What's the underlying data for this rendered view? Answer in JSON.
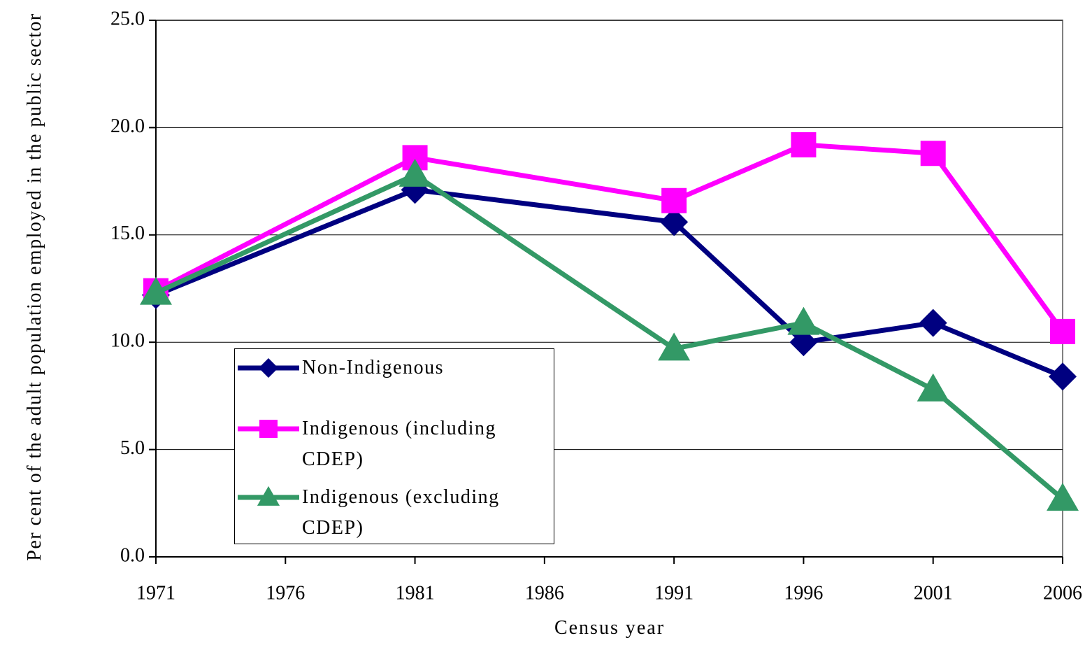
{
  "chart_data": {
    "type": "line",
    "x_label": "Census year",
    "y_label": "Per cent of the adult population employed in the public sector",
    "x": [
      1971,
      1981,
      1991,
      1996,
      2001,
      2006
    ],
    "series": [
      {
        "name": "Non-Indigenous",
        "color": "#000080",
        "marker": "diamond",
        "values": [
          12.2,
          17.1,
          15.6,
          10.0,
          10.9,
          8.4
        ]
      },
      {
        "name": "Indigenous (including CDEP)",
        "color": "#ff00ff",
        "marker": "square",
        "values": [
          12.4,
          18.6,
          16.6,
          19.2,
          18.8,
          10.5
        ]
      },
      {
        "name": "Indigenous (excluding CDEP)",
        "color": "#339966",
        "marker": "triangle",
        "values": [
          12.3,
          17.8,
          9.7,
          10.9,
          7.8,
          2.7
        ]
      }
    ],
    "xlim": [
      1971,
      2006
    ],
    "xticks": [
      1971,
      1976,
      1981,
      1986,
      1991,
      1996,
      2001,
      2006
    ],
    "ylim": [
      0,
      25
    ],
    "yticks": [
      {
        "value": 0,
        "label": "0.0"
      },
      {
        "value": 5,
        "label": "5.0"
      },
      {
        "value": 10,
        "label": "10.0"
      },
      {
        "value": 15,
        "label": "15.0"
      },
      {
        "value": 20,
        "label": "20.0"
      },
      {
        "value": 25,
        "label": "25.0"
      }
    ],
    "grid": true,
    "legend": "lower left"
  }
}
